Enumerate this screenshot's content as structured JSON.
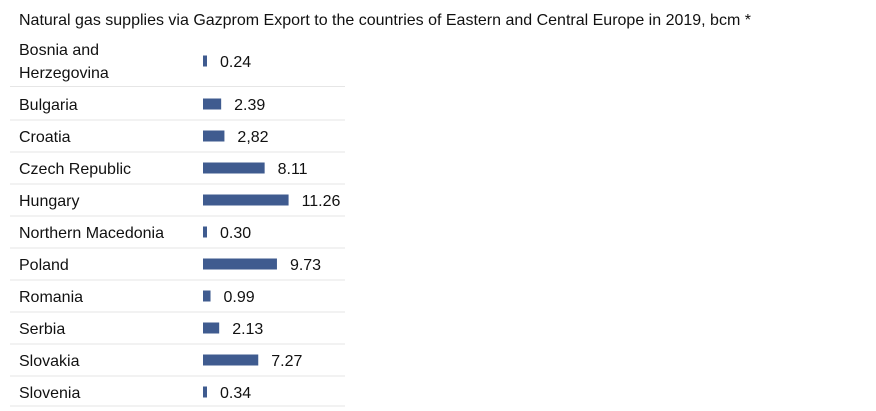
{
  "title": "Natural gas supplies via Gazprom Export to the countries of Eastern and Central Europe in 2019, bcm *",
  "colors": {
    "bar": "#3f5b8f",
    "divider": "#e6e6e6",
    "text": "#111111"
  },
  "chart_data": {
    "type": "bar",
    "orientation": "horizontal",
    "title": "Natural gas supplies via Gazprom Export to the countries of Eastern and Central Europe in 2019, bcm *",
    "unit": "bcm",
    "categories": [
      [
        "Bosnia and",
        "Herzegovina"
      ],
      [
        "Bulgaria"
      ],
      [
        "Croatia"
      ],
      [
        "Czech Republic"
      ],
      [
        "Hungary"
      ],
      [
        "Northern Macedonia"
      ],
      [
        "Poland"
      ],
      [
        "Romania"
      ],
      [
        "Serbia"
      ],
      [
        "Slovakia"
      ],
      [
        "Slovenia"
      ]
    ],
    "values": [
      0.24,
      2.39,
      2.82,
      8.11,
      11.26,
      0.3,
      9.73,
      0.99,
      2.13,
      7.27,
      0.34
    ],
    "value_labels": [
      "0.24",
      "2.39",
      "2,82",
      "8.11",
      "11.26",
      "0.30",
      "9.73",
      "0.99",
      "2.13",
      "7.27",
      "0.34"
    ],
    "grid": false,
    "legend": "none"
  }
}
